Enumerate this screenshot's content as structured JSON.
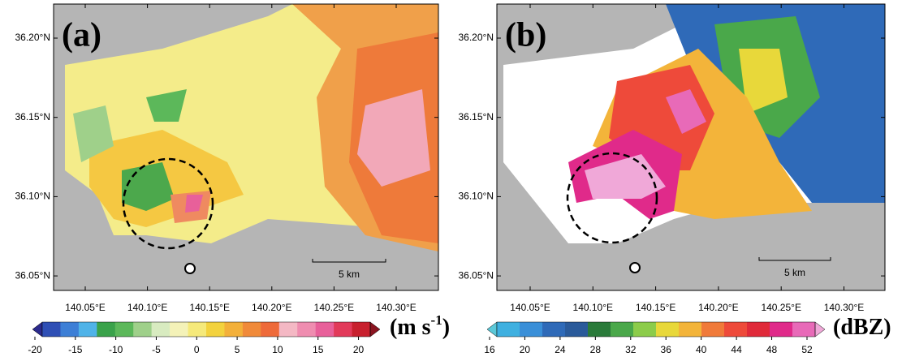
{
  "panels": [
    {
      "label": "(a)",
      "lat_labels": [
        "36.20°N",
        "36.15°N",
        "36.10°N",
        "36.05°N"
      ],
      "lon_labels": [
        "140.05°E",
        "140.10°E",
        "140.15°E",
        "140.20°E",
        "140.25°E",
        "140.30°E"
      ],
      "scale_bar": "5 km",
      "colorbar": {
        "ticks": [
          -20,
          -15,
          -10,
          -5,
          0,
          5,
          10,
          15,
          20
        ],
        "colors": [
          "#2b2a8c",
          "#2f4fb5",
          "#3d7fd6",
          "#4fb3e8",
          "#3aa24a",
          "#5cb85a",
          "#9fd08a",
          "#d8ebc0",
          "#f4f2b8",
          "#f5e97a",
          "#f3d23e",
          "#f3b03a",
          "#f08a3a",
          "#ee6a3a",
          "#f4b8c4",
          "#ef8db0",
          "#e8609a",
          "#e23a5a",
          "#c8202e",
          "#8a1420"
        ],
        "unit": {
          "open": "(m s",
          "sup": "-1",
          "close": ")"
        }
      }
    },
    {
      "label": "(b)",
      "lat_labels": [
        "36.20°N",
        "36.15°N",
        "36.10°N",
        "36.05°N"
      ],
      "lon_labels": [
        "140.05°E",
        "140.10°E",
        "140.15°E",
        "140.20°E",
        "140.25°E",
        "140.30°E"
      ],
      "scale_bar": "5 km",
      "colorbar": {
        "ticks": [
          16,
          20,
          24,
          28,
          32,
          36,
          40,
          44,
          48,
          52
        ],
        "colors": [
          "#5bc8d8",
          "#3fb0e0",
          "#3a8fd8",
          "#2f6ab8",
          "#2a5a9a",
          "#2a7a3a",
          "#4aa84a",
          "#8ccc4a",
          "#e8d83a",
          "#f3b43a",
          "#f07a3a",
          "#ee4a3a",
          "#e02a3a",
          "#e02a8a",
          "#e86ab8",
          "#f0a8d8"
        ],
        "unit": {
          "open": "(dBZ)"
        }
      }
    }
  ]
}
